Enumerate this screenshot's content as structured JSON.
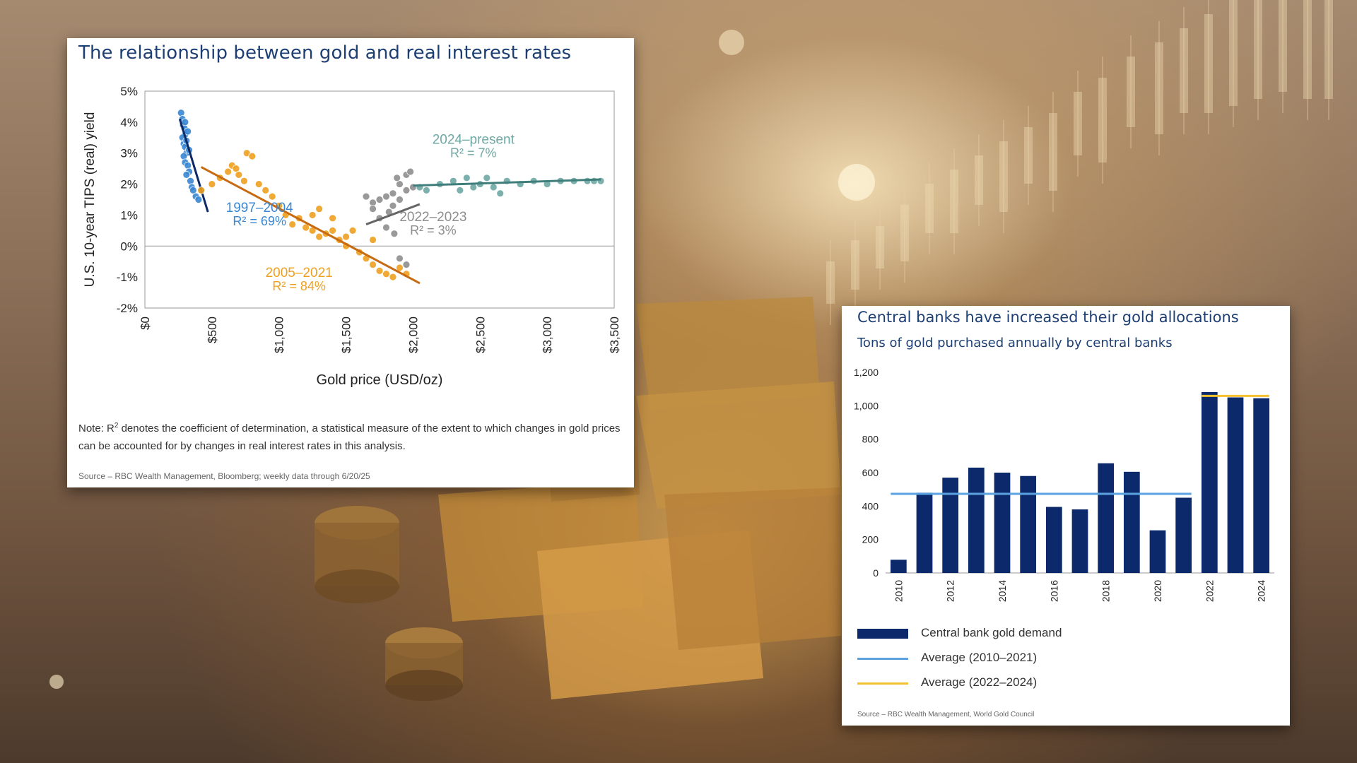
{
  "left_panel": {
    "title": "The relationship between gold and real interest rates",
    "note_prefix": "Note: R",
    "note_sup": "2",
    "note_text": " denotes the coefficient of determination, a statistical measure of the extent to which changes in gold prices can be accounted for by changes in real interest rates in this analysis.",
    "source": "Source – RBC Wealth Management, Bloomberg; weekly data through 6/20/25"
  },
  "right_panel": {
    "title": "Central banks have increased their gold allocations",
    "subtitle": "Tons of gold purchased annually by central banks",
    "source": "Source – RBC Wealth Management, World Gold Council"
  },
  "colors": {
    "blue_period": "#3a87d3",
    "orange_period": "#f0a020",
    "gray_period": "#8e8e8e",
    "teal_period": "#6ea8a4",
    "navy_bar": "#0c2a6b",
    "avg_2010_2021": "#5aa2e0",
    "avg_2022_2024": "#f2c12e",
    "title_blue": "#1d3f74"
  },
  "chart_data": [
    {
      "type": "scatter",
      "title": "The relationship between gold and real interest rates",
      "xlabel": "Gold price (USD/oz)",
      "ylabel": "U.S. 10-year TIPS (real) yield",
      "xlim": [
        0,
        3500
      ],
      "ylim": [
        -2,
        5
      ],
      "x_ticks": [
        "$0",
        "$500",
        "$1,000",
        "$1,500",
        "$2,000",
        "$2,500",
        "$3,000",
        "$3,500"
      ],
      "y_ticks": [
        "5%",
        "4%",
        "3%",
        "2%",
        "1%",
        "0%",
        "-1%",
        "-2%"
      ],
      "grid": false,
      "series": [
        {
          "name": "1997–2004",
          "r2_label": "R² = 69%",
          "color_key": "blue_period",
          "points": [
            [
              270,
              4.3
            ],
            [
              280,
              4.1
            ],
            [
              285,
              3.9
            ],
            [
              295,
              3.8
            ],
            [
              300,
              3.6
            ],
            [
              280,
              3.5
            ],
            [
              290,
              3.3
            ],
            [
              300,
              3.2
            ],
            [
              310,
              3.0
            ],
            [
              290,
              2.9
            ],
            [
              300,
              2.7
            ],
            [
              320,
              2.6
            ],
            [
              330,
              2.4
            ],
            [
              310,
              2.3
            ],
            [
              340,
              2.1
            ],
            [
              350,
              1.9
            ],
            [
              360,
              1.8
            ],
            [
              380,
              1.6
            ],
            [
              400,
              1.5
            ],
            [
              420,
              1.8
            ],
            [
              300,
              4.0
            ],
            [
              320,
              3.7
            ],
            [
              310,
              3.4
            ],
            [
              330,
              3.1
            ]
          ],
          "trend": [
            [
              260,
              4.1
            ],
            [
              470,
              1.1
            ]
          ]
        },
        {
          "name": "2005–2021",
          "r2_label": "R² = 84%",
          "color_key": "orange_period",
          "points": [
            [
              420,
              1.8
            ],
            [
              500,
              2.0
            ],
            [
              560,
              2.2
            ],
            [
              620,
              2.4
            ],
            [
              650,
              2.6
            ],
            [
              680,
              2.5
            ],
            [
              700,
              2.3
            ],
            [
              740,
              2.1
            ],
            [
              760,
              3.0
            ],
            [
              800,
              2.9
            ],
            [
              850,
              2.0
            ],
            [
              900,
              1.8
            ],
            [
              950,
              1.6
            ],
            [
              1000,
              1.3
            ],
            [
              1050,
              1.0
            ],
            [
              1100,
              0.7
            ],
            [
              1150,
              0.9
            ],
            [
              1200,
              0.6
            ],
            [
              1250,
              0.5
            ],
            [
              1300,
              0.3
            ],
            [
              1350,
              0.4
            ],
            [
              1400,
              0.9
            ],
            [
              1450,
              0.2
            ],
            [
              1500,
              0.0
            ],
            [
              1550,
              0.5
            ],
            [
              1600,
              -0.2
            ],
            [
              1650,
              -0.4
            ],
            [
              1700,
              -0.6
            ],
            [
              1750,
              -0.8
            ],
            [
              1800,
              -0.9
            ],
            [
              1850,
              -1.0
            ],
            [
              1900,
              -0.7
            ],
            [
              1950,
              -0.9
            ],
            [
              1250,
              1.0
            ],
            [
              1300,
              1.2
            ],
            [
              1400,
              0.5
            ],
            [
              1500,
              0.3
            ],
            [
              1700,
              0.2
            ]
          ],
          "trend": [
            [
              420,
              2.55
            ],
            [
              2050,
              -1.2
            ]
          ]
        },
        {
          "name": "2022–2023",
          "r2_label": "R² = 3%",
          "color_key": "gray_period",
          "points": [
            [
              1650,
              1.6
            ],
            [
              1700,
              1.4
            ],
            [
              1750,
              1.5
            ],
            [
              1800,
              1.6
            ],
            [
              1850,
              1.7
            ],
            [
              1900,
              2.0
            ],
            [
              1950,
              2.3
            ],
            [
              1820,
              1.1
            ],
            [
              1860,
              0.4
            ],
            [
              1900,
              -0.4
            ],
            [
              1950,
              -0.6
            ],
            [
              1700,
              1.2
            ],
            [
              1750,
              0.9
            ],
            [
              1800,
              0.6
            ],
            [
              1850,
              1.3
            ],
            [
              1900,
              1.5
            ],
            [
              1950,
              1.8
            ],
            [
              1980,
              2.4
            ],
            [
              2000,
              1.9
            ],
            [
              1880,
              2.2
            ]
          ],
          "trend": [
            [
              1650,
              0.7
            ],
            [
              2050,
              1.35
            ]
          ]
        },
        {
          "name": "2024–present",
          "r2_label": "R² = 7%",
          "color_key": "teal_period",
          "points": [
            [
              2050,
              1.9
            ],
            [
              2100,
              1.8
            ],
            [
              2200,
              2.0
            ],
            [
              2300,
              2.1
            ],
            [
              2400,
              2.2
            ],
            [
              2500,
              2.0
            ],
            [
              2600,
              1.9
            ],
            [
              2700,
              2.1
            ],
            [
              2800,
              2.0
            ],
            [
              2900,
              2.1
            ],
            [
              3000,
              2.0
            ],
            [
              3100,
              2.1
            ],
            [
              3200,
              2.1
            ],
            [
              3300,
              2.1
            ],
            [
              3350,
              2.1
            ],
            [
              3400,
              2.1
            ],
            [
              2350,
              1.8
            ],
            [
              2550,
              2.2
            ],
            [
              2650,
              1.7
            ],
            [
              2450,
              1.9
            ]
          ],
          "trend": [
            [
              2000,
              1.95
            ],
            [
              3400,
              2.15
            ]
          ]
        }
      ],
      "annotations": [
        {
          "label": "1997–2004",
          "r2": "R² = 69%",
          "color_key": "blue_period"
        },
        {
          "label": "2005–2021",
          "r2": "R² = 84%",
          "color_key": "orange_period"
        },
        {
          "label": "2022–2023",
          "r2": "R² = 3%",
          "color_key": "gray_period"
        },
        {
          "label": "2024–present",
          "r2": "R² = 7%",
          "color_key": "teal_period"
        }
      ]
    },
    {
      "type": "bar",
      "title": "Central banks have increased their gold allocations",
      "subtitle": "Tons of gold purchased annually by central banks",
      "categories": [
        "2010",
        "2011",
        "2012",
        "2013",
        "2014",
        "2015",
        "2016",
        "2017",
        "2018",
        "2019",
        "2020",
        "2021",
        "2022",
        "2023",
        "2024"
      ],
      "x_tick_labels": [
        "2010",
        "",
        "2012",
        "",
        "2014",
        "",
        "2016",
        "",
        "2018",
        "",
        "2020",
        "",
        "2022",
        "",
        "2024"
      ],
      "series": [
        {
          "name": "Central bank gold demand",
          "values": [
            79,
            480,
            570,
            630,
            600,
            580,
            395,
            380,
            656,
            605,
            255,
            450,
            1082,
            1050,
            1045
          ],
          "color_key": "navy_bar"
        }
      ],
      "averages": [
        {
          "name": "Average (2010–2021)",
          "value": 473,
          "from": "2010",
          "to": "2021",
          "color_key": "avg_2010_2021"
        },
        {
          "name": "Average (2022–2024)",
          "value": 1059,
          "from": "2022",
          "to": "2024",
          "color_key": "avg_2022_2024"
        }
      ],
      "ylim": [
        0,
        1200
      ],
      "y_ticks": [
        "0",
        "200",
        "400",
        "600",
        "800",
        "1,000",
        "1,200"
      ],
      "legend_position": "bottom",
      "grid": false
    }
  ]
}
